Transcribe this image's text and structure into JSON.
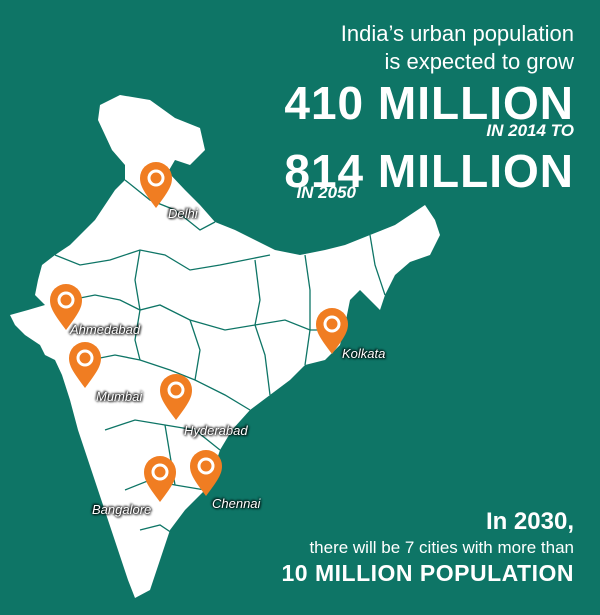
{
  "headline": {
    "line1": "India’s urban population",
    "line2": "is expected to grow",
    "value1": "410 MILLION",
    "period1": "IN 2014 TO",
    "value2": "814 MILLION",
    "period2": "IN 2050"
  },
  "footer": {
    "line1": "In 2030,",
    "line2": "there will be 7 cities with more than",
    "line3": "10 MILLION POPULATION"
  },
  "cities": [
    {
      "name": "Delhi"
    },
    {
      "name": "Ahmedabad"
    },
    {
      "name": "Kolkata"
    },
    {
      "name": "Mumbai"
    },
    {
      "name": "Hyderabad"
    },
    {
      "name": "Bangalore"
    },
    {
      "name": "Chennai"
    }
  ],
  "colors": {
    "background": "#0e7566",
    "map": "#ffffff",
    "borders": "#0e7566",
    "pin": "#f07d22"
  },
  "icons": [
    "map-pin-icon"
  ]
}
